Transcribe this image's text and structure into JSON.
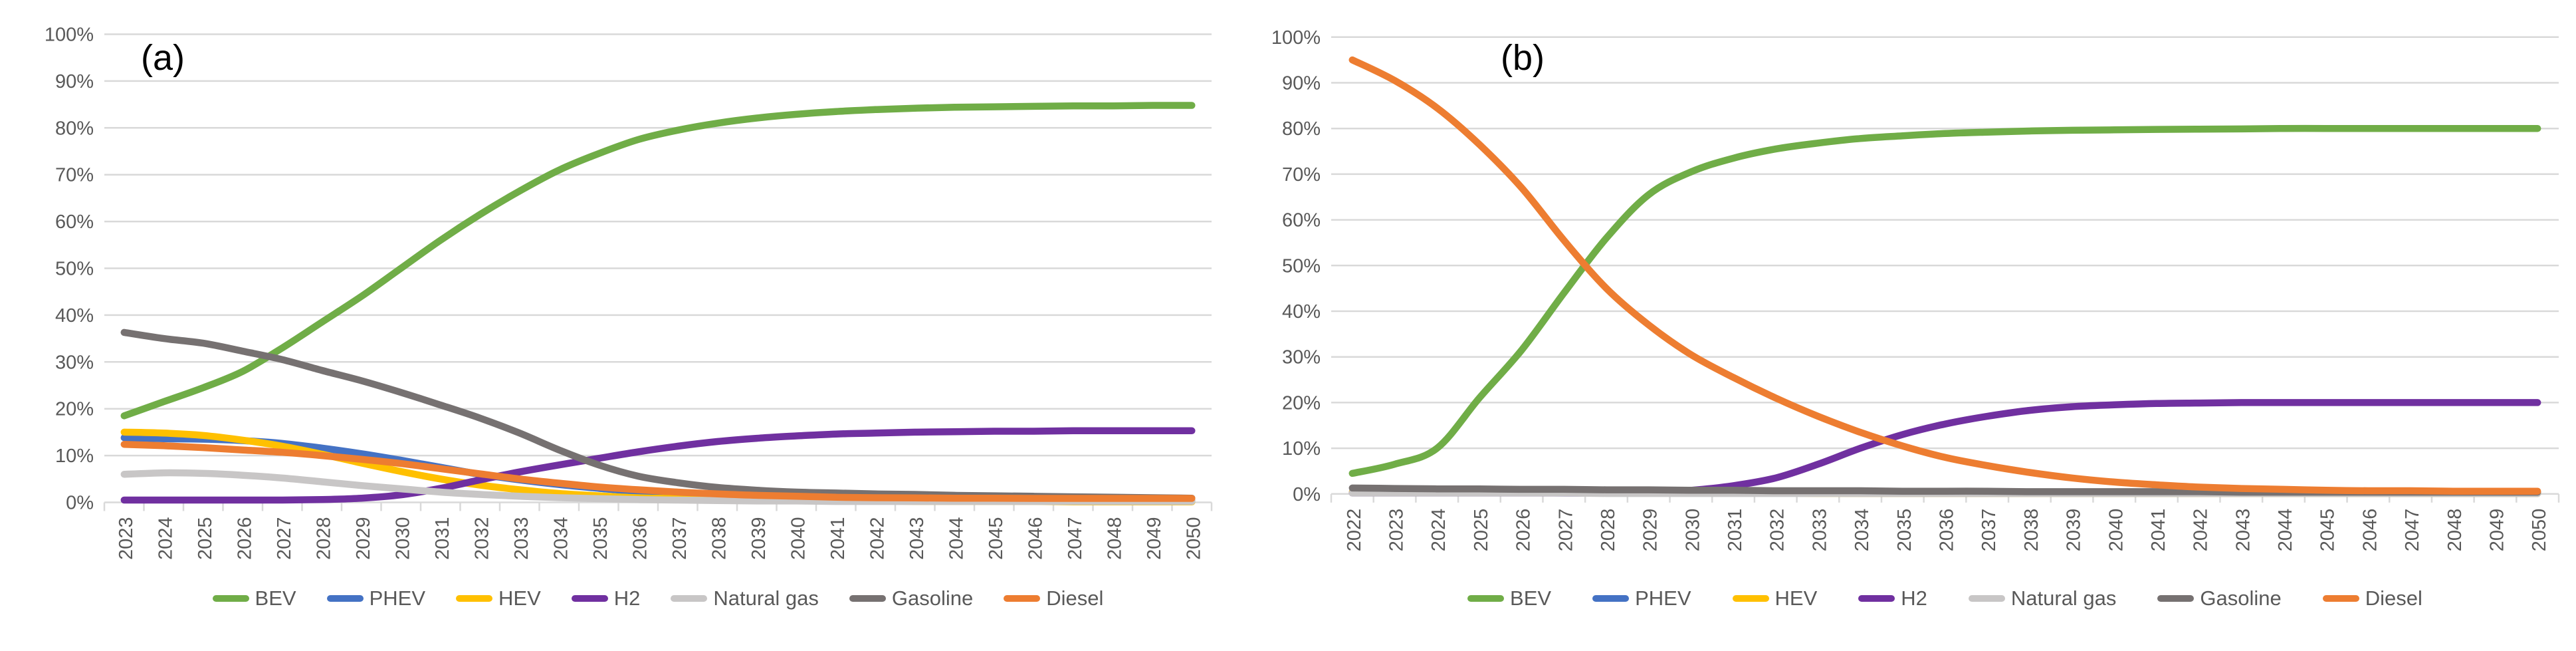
{
  "figure": {
    "background": "#FFFFFF",
    "panel_a_label": "(a)",
    "panel_b_label": "(b)"
  },
  "theme": {
    "gridline_color": "#D9D9D9",
    "axis_color": "#D9D9D9",
    "tick_label_color": "#595959",
    "legend_text_color": "#595959",
    "title_color": "#000000"
  },
  "chart_data": [
    {
      "type": "line",
      "label": "(a)",
      "x": [
        "2023",
        "2024",
        "2025",
        "2026",
        "2027",
        "2028",
        "2029",
        "2030",
        "2031",
        "2032",
        "2033",
        "2034",
        "2035",
        "2036",
        "2037",
        "2038",
        "2039",
        "2040",
        "2041",
        "2042",
        "2043",
        "2044",
        "2045",
        "2046",
        "2047",
        "2048",
        "2049",
        "2050"
      ],
      "ylim": [
        0,
        100
      ],
      "y_tick_values": [
        0,
        10,
        20,
        30,
        40,
        50,
        60,
        70,
        80,
        90,
        100
      ],
      "y_tick_labels": [
        "0%",
        "10%",
        "20%",
        "30%",
        "40%",
        "50%",
        "60%",
        "70%",
        "80%",
        "90%",
        "100%"
      ],
      "grid": "horizontal",
      "legend_position": "bottom",
      "series": [
        {
          "name": "BEV",
          "color": "#70AD47",
          "values": [
            18.5,
            21.5,
            24.5,
            28,
            33,
            38.5,
            44,
            50,
            56,
            61.5,
            66.5,
            71,
            74.5,
            77.5,
            79.5,
            81,
            82.1,
            82.9,
            83.5,
            83.9,
            84.2,
            84.4,
            84.5,
            84.6,
            84.7,
            84.7,
            84.8,
            84.8
          ]
        },
        {
          "name": "PHEV",
          "color": "#4472C4",
          "values": [
            13.8,
            13.6,
            13.5,
            13.2,
            12.6,
            11.6,
            10.4,
            9,
            7.5,
            6,
            4.8,
            3.8,
            3,
            2.3,
            1.8,
            1.4,
            1.1,
            0.9,
            0.7,
            0.6,
            0.5,
            0.5,
            0.4,
            0.4,
            0.3,
            0.3,
            0.3,
            0.3
          ]
        },
        {
          "name": "HEV",
          "color": "#FFC000",
          "values": [
            15,
            14.8,
            14.3,
            13.3,
            12,
            10.3,
            8.4,
            6.6,
            5,
            3.7,
            2.7,
            1.9,
            1.4,
            1,
            0.8,
            0.6,
            0.5,
            0.4,
            0.3,
            0.3,
            0.2,
            0.2,
            0.2,
            0.2,
            0.1,
            0.1,
            0.1,
            0.1
          ]
        },
        {
          "name": "H2",
          "color": "#7030A0",
          "values": [
            0.5,
            0.5,
            0.5,
            0.5,
            0.5,
            0.6,
            0.9,
            1.6,
            3,
            4.8,
            6.5,
            8,
            9.4,
            10.8,
            12,
            13,
            13.7,
            14.2,
            14.6,
            14.8,
            15,
            15.1,
            15.2,
            15.2,
            15.3,
            15.3,
            15.3,
            15.3
          ]
        },
        {
          "name": "Natural gas",
          "color": "#C8C6C6",
          "values": [
            6,
            6.3,
            6.2,
            5.8,
            5.2,
            4.4,
            3.6,
            2.9,
            2.2,
            1.7,
            1.3,
            1,
            0.8,
            0.6,
            0.5,
            0.4,
            0.3,
            0.3,
            0.2,
            0.2,
            0.2,
            0.2,
            0.2,
            0.2,
            0.2,
            0.2,
            0.2,
            0.2
          ]
        },
        {
          "name": "Gasoline",
          "color": "#767171",
          "values": [
            36.3,
            35,
            34,
            32.3,
            30.5,
            28.2,
            26,
            23.5,
            20.8,
            18,
            14.8,
            11.2,
            8,
            5.6,
            4.2,
            3.2,
            2.6,
            2.2,
            2,
            1.8,
            1.7,
            1.5,
            1.4,
            1.3,
            1.2,
            1.1,
            1,
            0.9
          ]
        },
        {
          "name": "Diesel",
          "color": "#ED7D31",
          "values": [
            12.4,
            12.1,
            11.7,
            11.2,
            10.7,
            10,
            9.2,
            8.3,
            7.2,
            6.1,
            5,
            4.1,
            3.3,
            2.7,
            2.2,
            1.8,
            1.5,
            1.3,
            1.1,
            1,
            0.95,
            0.9,
            0.9,
            0.85,
            0.85,
            0.85,
            0.85,
            0.85
          ]
        }
      ]
    },
    {
      "type": "line",
      "label": "(b)",
      "x": [
        "2022",
        "2023",
        "2024",
        "2025",
        "2026",
        "2027",
        "2028",
        "2029",
        "2030",
        "2031",
        "2032",
        "2033",
        "2034",
        "2035",
        "2036",
        "2037",
        "2038",
        "2039",
        "2040",
        "2041",
        "2042",
        "2043",
        "2044",
        "2045",
        "2046",
        "2047",
        "2048",
        "2049",
        "2050"
      ],
      "ylim": [
        0,
        100
      ],
      "y_tick_values": [
        0,
        10,
        20,
        30,
        40,
        50,
        60,
        70,
        80,
        90,
        100
      ],
      "y_tick_labels": [
        "0%",
        "10%",
        "20%",
        "30%",
        "40%",
        "50%",
        "60%",
        "70%",
        "80%",
        "90%",
        "100%"
      ],
      "grid": "horizontal",
      "legend_position": "bottom",
      "series": [
        {
          "name": "BEV",
          "color": "#70AD47",
          "values": [
            4.5,
            6.5,
            10,
            21,
            31.5,
            44,
            56,
            65.5,
            70.5,
            73.5,
            75.5,
            76.8,
            77.8,
            78.4,
            78.9,
            79.2,
            79.45,
            79.6,
            79.7,
            79.8,
            79.85,
            79.9,
            80,
            80,
            80,
            80,
            80,
            80,
            80
          ]
        },
        {
          "name": "PHEV",
          "color": "#4472C4",
          "values": [
            0.3,
            0.3,
            0.3,
            0.3,
            0.3,
            0.2,
            0.2,
            0.2,
            0.2,
            0.2,
            0.2,
            0.2,
            0.1,
            0.1,
            0.1,
            0.1,
            0.1,
            0.1,
            0.1,
            0.1,
            0.1,
            0.1,
            0.1,
            0.1,
            0.1,
            0.1,
            0.1,
            0.1,
            0.1
          ]
        },
        {
          "name": "HEV",
          "color": "#FFC000",
          "values": [
            0.4,
            0.4,
            0.3,
            0.3,
            0.3,
            0.3,
            0.2,
            0.2,
            0.2,
            0.2,
            0.2,
            0.1,
            0.1,
            0.1,
            0.1,
            0.1,
            0.1,
            0.1,
            0.1,
            0.1,
            0.1,
            0.1,
            0.1,
            0.1,
            0.1,
            0.1,
            0.1,
            0.1,
            0.1
          ]
        },
        {
          "name": "H2",
          "color": "#7030A0",
          "values": [
            0.2,
            0.2,
            0.2,
            0.2,
            0.2,
            0.2,
            0.2,
            0.3,
            0.8,
            1.8,
            3.5,
            6.5,
            10,
            13,
            15.3,
            17,
            18.3,
            19.1,
            19.5,
            19.8,
            19.9,
            20,
            20,
            20,
            20,
            20,
            20,
            20,
            20
          ]
        },
        {
          "name": "Natural gas",
          "color": "#C8C6C6",
          "values": [
            0.2,
            0.2,
            0.2,
            0.2,
            0.2,
            0.2,
            0.1,
            0.1,
            0.1,
            0.1,
            0.1,
            0.1,
            0.1,
            0.1,
            0.1,
            0.1,
            0.1,
            0.1,
            0.1,
            0.1,
            0.1,
            0.1,
            0.1,
            0.1,
            0.1,
            0.1,
            0.1,
            0.1,
            0.1
          ]
        },
        {
          "name": "Gasoline",
          "color": "#767171",
          "values": [
            1.3,
            1.2,
            1.1,
            1.1,
            1,
            1,
            0.9,
            0.9,
            0.8,
            0.8,
            0.7,
            0.7,
            0.7,
            0.6,
            0.6,
            0.6,
            0.5,
            0.5,
            0.5,
            0.5,
            0.5,
            0.4,
            0.4,
            0.4,
            0.4,
            0.4,
            0.4,
            0.4,
            0.4
          ]
        },
        {
          "name": "Diesel",
          "color": "#ED7D31",
          "values": [
            95,
            90.5,
            84.5,
            76.5,
            67,
            55.5,
            45,
            37,
            30.5,
            25.5,
            21,
            17,
            13.5,
            10.5,
            8,
            6.2,
            4.7,
            3.5,
            2.6,
            2,
            1.5,
            1.2,
            1,
            0.8,
            0.7,
            0.7,
            0.6,
            0.6,
            0.6
          ]
        }
      ]
    }
  ]
}
